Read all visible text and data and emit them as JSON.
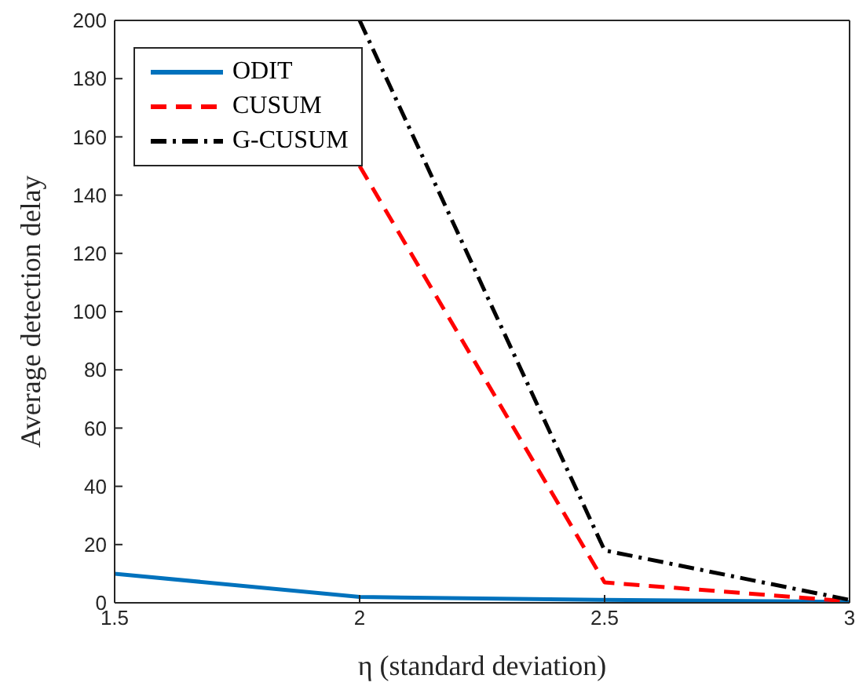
{
  "chart_data": {
    "type": "line",
    "xlabel": "η (standard deviation)",
    "ylabel": "Average detection delay",
    "x": [
      1.5,
      2,
      2.5,
      3
    ],
    "series": [
      {
        "name": "ODIT",
        "color": "#0072bd",
        "line_style": "solid",
        "values": [
          10,
          2,
          1,
          0.3
        ]
      },
      {
        "name": "CUSUM",
        "color": "#ff0000",
        "line_style": "dashed",
        "values": [
          null,
          150,
          7,
          0.5
        ]
      },
      {
        "name": "G-CUSUM",
        "color": "#000000",
        "line_style": "dashdot",
        "values": [
          null,
          200,
          18,
          1
        ]
      }
    ],
    "xlim": [
      1.5,
      3
    ],
    "xticks": [
      1.5,
      2,
      2.5,
      3
    ],
    "ylim": [
      0,
      200
    ],
    "yticks": [
      0,
      20,
      40,
      60,
      80,
      100,
      120,
      140,
      160,
      180,
      200
    ],
    "grid": false,
    "legend": "top left",
    "marker": "none"
  }
}
